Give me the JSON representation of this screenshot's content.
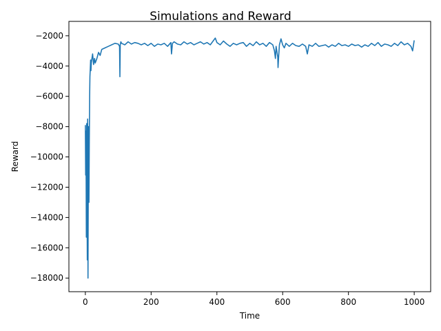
{
  "chart_data": {
    "type": "line",
    "title": "Simulations  and  Reward",
    "xlabel": "Time",
    "ylabel": "Reward",
    "xlim": [
      -50,
      1050
    ],
    "ylim": [
      -18900,
      -1050
    ],
    "xticks": [
      0,
      200,
      400,
      600,
      800,
      1000
    ],
    "yticks": [
      -18000,
      -16000,
      -14000,
      -12000,
      -10000,
      -8000,
      -6000,
      -4000,
      -2000
    ],
    "xtick_labels": [
      "0",
      "200",
      "400",
      "600",
      "800",
      "1000"
    ],
    "ytick_labels": [
      "−18000",
      "−16000",
      "−14000",
      "−12000",
      "−10000",
      "−8000",
      "−6000",
      "−4000",
      "−2000"
    ],
    "grid": false,
    "legend": "none",
    "series": [
      {
        "color": "#1f77b4",
        "x": [
          0,
          1,
          2,
          3,
          4,
          5,
          6,
          7,
          8,
          9,
          10,
          11,
          12,
          13,
          14,
          15,
          16,
          17,
          18,
          20,
          22,
          25,
          28,
          30,
          35,
          40,
          45,
          50,
          60,
          70,
          80,
          90,
          100,
          104,
          105,
          106,
          108,
          110,
          120,
          130,
          140,
          150,
          160,
          170,
          180,
          190,
          200,
          210,
          220,
          230,
          240,
          250,
          260,
          262,
          265,
          270,
          280,
          290,
          300,
          310,
          320,
          330,
          340,
          350,
          360,
          370,
          380,
          390,
          395,
          400,
          410,
          420,
          430,
          440,
          450,
          460,
          470,
          480,
          490,
          500,
          510,
          520,
          530,
          540,
          550,
          560,
          570,
          575,
          578,
          580,
          585,
          586,
          588,
          590,
          595,
          600,
          605,
          610,
          620,
          630,
          640,
          650,
          660,
          670,
          675,
          680,
          690,
          700,
          710,
          720,
          730,
          740,
          750,
          760,
          770,
          780,
          790,
          800,
          810,
          820,
          830,
          840,
          850,
          860,
          870,
          880,
          890,
          900,
          910,
          920,
          930,
          940,
          950,
          960,
          970,
          980,
          990,
          995,
          1000
        ],
        "y": [
          -7900,
          -11200,
          -8300,
          -15300,
          -7800,
          -12500,
          -16800,
          -7500,
          -18000,
          -11000,
          -8000,
          -13000,
          -9000,
          -6000,
          -4700,
          -4200,
          -3600,
          -4300,
          -3800,
          -3500,
          -3200,
          -3900,
          -3500,
          -3800,
          -3500,
          -3100,
          -3300,
          -2900,
          -2800,
          -2700,
          -2600,
          -2500,
          -2550,
          -2700,
          -4700,
          -2600,
          -2400,
          -2500,
          -2600,
          -2400,
          -2550,
          -2450,
          -2500,
          -2600,
          -2500,
          -2650,
          -2500,
          -2700,
          -2550,
          -2600,
          -2500,
          -2700,
          -2450,
          -3200,
          -2500,
          -2400,
          -2550,
          -2600,
          -2400,
          -2550,
          -2450,
          -2600,
          -2500,
          -2400,
          -2550,
          -2450,
          -2600,
          -2300,
          -2150,
          -2450,
          -2600,
          -2350,
          -2550,
          -2700,
          -2500,
          -2600,
          -2500,
          -2450,
          -2700,
          -2500,
          -2650,
          -2400,
          -2600,
          -2500,
          -2700,
          -2450,
          -2600,
          -3000,
          -3500,
          -2700,
          -3400,
          -4100,
          -3300,
          -2600,
          -2200,
          -2600,
          -2800,
          -2500,
          -2700,
          -2500,
          -2650,
          -2700,
          -2550,
          -2700,
          -3200,
          -2600,
          -2700,
          -2500,
          -2700,
          -2650,
          -2600,
          -2750,
          -2600,
          -2700,
          -2500,
          -2650,
          -2600,
          -2700,
          -2550,
          -2650,
          -2600,
          -2750,
          -2600,
          -2700,
          -2500,
          -2650,
          -2450,
          -2700,
          -2550,
          -2600,
          -2700,
          -2500,
          -2650,
          -2400,
          -2600,
          -2500,
          -2700,
          -3000,
          -2300
        ]
      }
    ]
  }
}
